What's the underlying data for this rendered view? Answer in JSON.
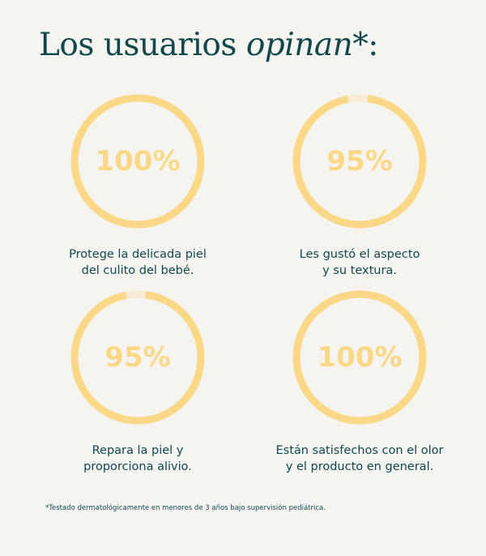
{
  "title": {
    "main": "Los usuarios ",
    "emphasis": "opinan",
    "suffix": "*:"
  },
  "colors": {
    "background": "#f6f4f0",
    "text": "#10474d",
    "ring": "#fad887",
    "ring_track": "#f9ecd6"
  },
  "stats": [
    {
      "label": "100%",
      "value": 100,
      "caption": [
        "Protege la delicada piel",
        "del culito del bebé."
      ]
    },
    {
      "label": "95%",
      "value": 95,
      "caption": [
        "Les gustó el aspecto",
        "y su textura."
      ]
    },
    {
      "label": "95%",
      "value": 95,
      "caption": [
        "Repara la piel y",
        "proporciona alivio."
      ]
    },
    {
      "label": "100%",
      "value": 100,
      "caption": [
        "Están satisfechos con el olor",
        "y el producto en general."
      ]
    }
  ],
  "footnote": "*Testado dermatológicamente en menores de 3 años bajo supervisión pediátrica."
}
